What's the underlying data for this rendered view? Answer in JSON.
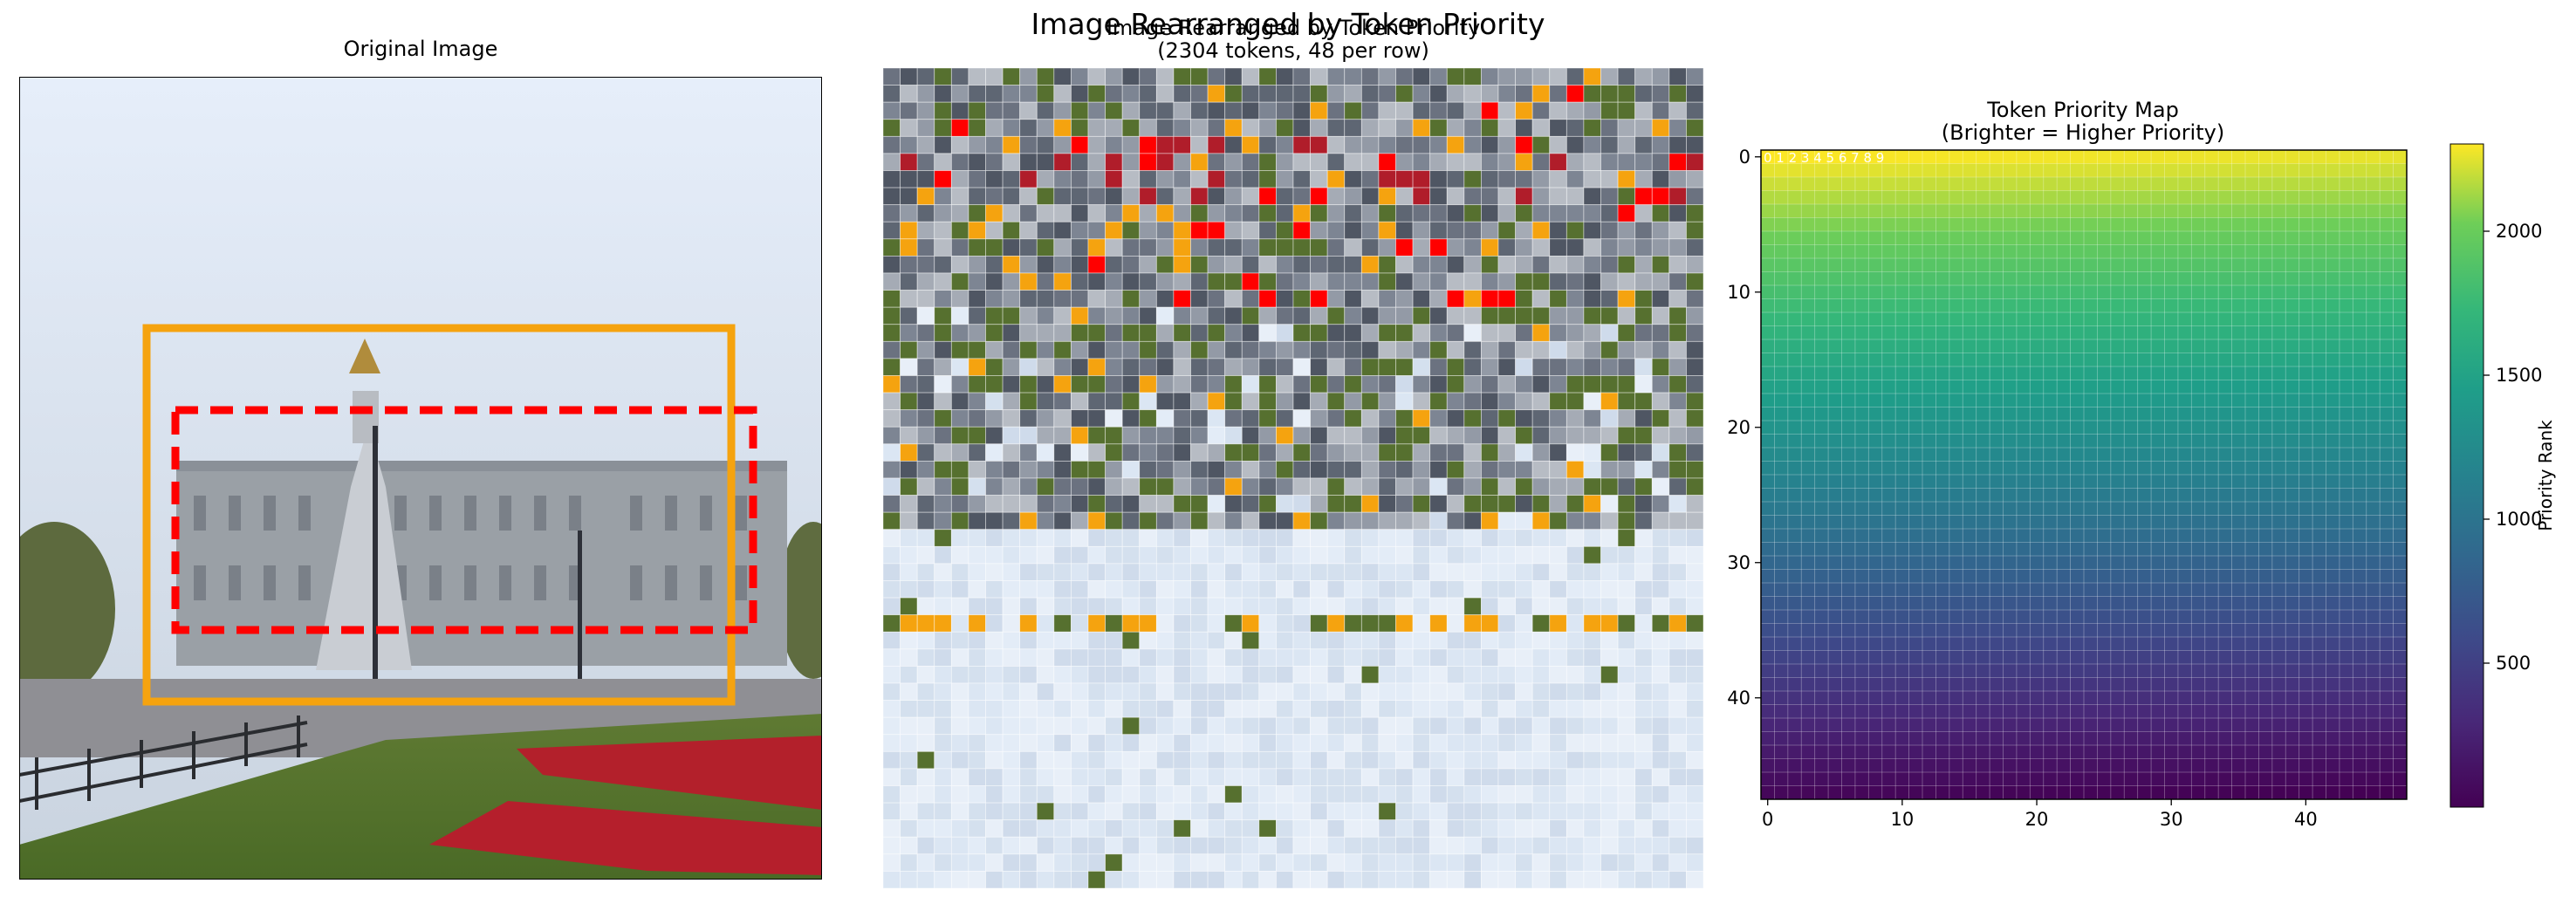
{
  "figure": {
    "suptitle": "Image Rearranged by Token Priority"
  },
  "panels": {
    "original": {
      "title": "Original Image"
    },
    "rearranged": {
      "title_line1": "Image Rearranged by Token Priority",
      "title_line2": "(2304 tokens, 48 per row)"
    },
    "priority_map": {
      "title_line1": "Token Priority Map",
      "title_line2": "(Brighter = Higher Priority)",
      "colorbar_label": "Priority Rank",
      "top_row_labels": "0 1 2 3 4 5 6 7 8 9"
    }
  },
  "chart_data": {
    "type": "heatmap",
    "title": "Token Priority Map\n(Brighter = Higher Priority)",
    "grid_rows": 48,
    "grid_cols": 48,
    "total_tokens": 2304,
    "value_range": [
      0,
      2303
    ],
    "description_of_values": "priority rank increases from bottom row (low) to top row (high)",
    "x_ticks": [
      0,
      10,
      20,
      30,
      40
    ],
    "y_ticks": [
      0,
      10,
      20,
      30,
      40
    ],
    "xlim": [
      -0.5,
      47.5
    ],
    "ylim": [
      47.5,
      -0.5
    ],
    "colormap": "viridis",
    "colorbar": {
      "label": "Priority Rank",
      "ticks": [
        500,
        1000,
        1500,
        2000
      ],
      "range": [
        0,
        2303
      ]
    }
  },
  "colors": {
    "box_solid": "#f5a30f",
    "box_dashed": "#ff0000",
    "sky": "#dde7f2",
    "grass": "#56702f",
    "flowers": "#b01d2a",
    "stone": "#8a909c"
  }
}
